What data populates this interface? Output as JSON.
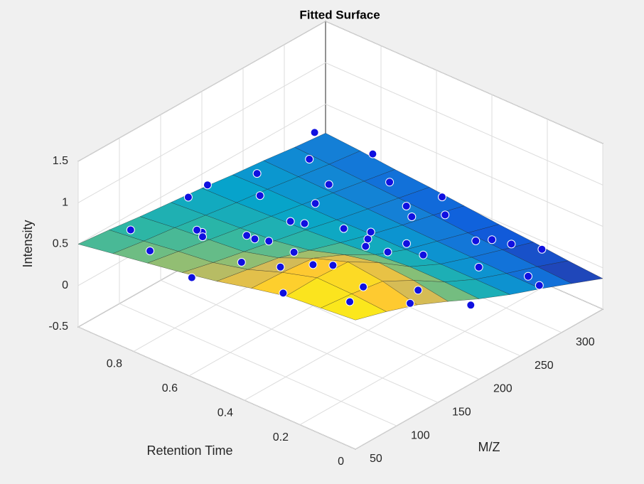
{
  "chart_data": {
    "type": "surface3d",
    "title": "Fitted Surface",
    "xlabel": "Retention Time",
    "ylabel": "M/Z",
    "zlabel": "Intensity",
    "xlim": [
      0,
      1
    ],
    "xticks": [
      0,
      0.2,
      0.4,
      0.6,
      0.8
    ],
    "ylim": [
      50,
      350
    ],
    "yticks": [
      50,
      100,
      150,
      200,
      250,
      300
    ],
    "zlim": [
      -0.5,
      1.5
    ],
    "zticks": [
      -0.5,
      0,
      0.5,
      1,
      1.5
    ],
    "grid": true,
    "colormap": [
      "#352a87",
      "#0f5cdd",
      "#1481d6",
      "#06a4ca",
      "#2eb7a4",
      "#87bf77",
      "#d1bb59",
      "#fec832",
      "#f9fb0e"
    ],
    "surface": {
      "x": [
        0,
        0.125,
        0.25,
        0.375,
        0.5,
        0.625,
        0.75,
        0.875,
        1
      ],
      "y": [
        50,
        87.5,
        125,
        162.5,
        200,
        237.5,
        275,
        312.5,
        350
      ],
      "z": [
        [
          1.06,
          0.95,
          0.82,
          0.65,
          0.47,
          0.31,
          0.17,
          0.02,
          -0.13
        ],
        [
          1.02,
          0.98,
          0.92,
          0.72,
          0.49,
          0.31,
          0.17,
          0.04,
          -0.1
        ],
        [
          0.98,
          0.99,
          0.97,
          0.75,
          0.49,
          0.31,
          0.18,
          0.06,
          -0.06
        ],
        [
          0.89,
          0.87,
          0.83,
          0.66,
          0.45,
          0.3,
          0.19,
          0.08,
          -0.03
        ],
        [
          0.79,
          0.72,
          0.65,
          0.53,
          0.41,
          0.3,
          0.2,
          0.11,
          0.01
        ],
        [
          0.71,
          0.62,
          0.54,
          0.46,
          0.38,
          0.29,
          0.21,
          0.13,
          0.05
        ],
        [
          0.64,
          0.57,
          0.5,
          0.43,
          0.36,
          0.29,
          0.22,
          0.15,
          0.08
        ],
        [
          0.57,
          0.51,
          0.46,
          0.4,
          0.34,
          0.29,
          0.23,
          0.17,
          0.12
        ],
        [
          0.5,
          0.46,
          0.41,
          0.37,
          0.33,
          0.28,
          0.24,
          0.19,
          0.15
        ]
      ]
    },
    "points": {
      "color": "#1010e0",
      "edgecolor": "#ffffff",
      "x": [
        0.05,
        0.1,
        0.12,
        0.18,
        0.2,
        0.22,
        0.25,
        0.28,
        0.3,
        0.32,
        0.35,
        0.38,
        0.4,
        0.42,
        0.45,
        0.48,
        0.5,
        0.52,
        0.55,
        0.58,
        0.6,
        0.62,
        0.65,
        0.68,
        0.7,
        0.72,
        0.75,
        0.78,
        0.8,
        0.82,
        0.85,
        0.88,
        0.9,
        0.92,
        0.95,
        0.98,
        0.08,
        0.15,
        0.27,
        0.33,
        0.44,
        0.57,
        0.63,
        0.74,
        0.86,
        0.93,
        0.03,
        0.16,
        0.37,
        0.53
      ],
      "y": [
        60,
        150,
        240,
        320,
        90,
        200,
        280,
        130,
        340,
        70,
        180,
        260,
        110,
        300,
        220,
        160,
        80,
        330,
        250,
        140,
        190,
        60,
        310,
        230,
        100,
        170,
        270,
        120,
        340,
        210,
        150,
        290,
        80,
        240,
        190,
        330,
        300,
        110,
        180,
        70,
        260,
        310,
        130,
        220,
        90,
        160,
        200,
        330,
        340,
        290
      ],
      "z": [
        1.15,
        0.55,
        0.45,
        -0.2,
        1.2,
        0.25,
        0.35,
        1.3,
        -0.1,
        0.8,
        0.7,
        0.1,
        0.95,
        0.3,
        0.5,
        0.4,
        0.85,
        0.2,
        0.1,
        0.65,
        0.55,
        0.6,
        0.3,
        0.45,
        0.75,
        0.3,
        0.35,
        0.6,
        0.25,
        0.45,
        0.3,
        0.35,
        0.65,
        0.4,
        0.5,
        0.3,
        -0.05,
        0.9,
        0.75,
        1.1,
        0.15,
        0,
        0.7,
        0.2,
        0.4,
        0.55,
        0.35,
        0.1,
        -0.15,
        0.3
      ]
    }
  }
}
